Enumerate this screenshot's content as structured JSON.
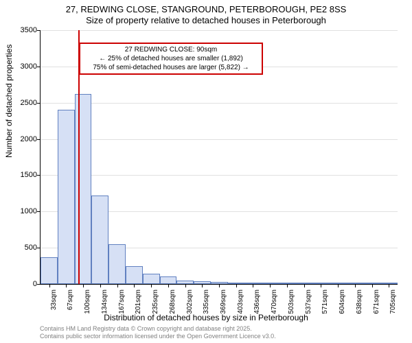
{
  "title_line1": "27, REDWING CLOSE, STANGROUND, PETERBOROUGH, PE2 8SS",
  "title_line2": "Size of property relative to detached houses in Peterborough",
  "y_axis_label": "Number of detached properties",
  "x_axis_label": "Distribution of detached houses by size in Peterborough",
  "footer_line1": "Contains HM Land Registry data © Crown copyright and database right 2025.",
  "footer_line2": "Contains public sector information licensed under the Open Government Licence v3.0.",
  "annotation": {
    "line1": "27 REDWING CLOSE: 90sqm",
    "line2": "← 25% of detached houses are smaller (1,892)",
    "line3": "75% of semi-detached houses are larger (5,822) →",
    "border_color": "#cc0000",
    "marker_x": 90
  },
  "chart": {
    "type": "histogram",
    "ylim": [
      0,
      3500
    ],
    "ytick_step": 500,
    "x_min": 16,
    "x_max": 722,
    "x_tick_start": 33,
    "x_tick_step": 33.6,
    "x_tick_count": 21,
    "x_unit": "sqm",
    "bar_fill": "#d6e0f5",
    "bar_border": "#6080c0",
    "marker_color": "#cc0000",
    "grid_color": "#e0e0e0",
    "bars": [
      {
        "x0": 16,
        "x1": 50,
        "value": 370
      },
      {
        "x0": 50,
        "x1": 84,
        "value": 2400
      },
      {
        "x0": 84,
        "x1": 117,
        "value": 2620
      },
      {
        "x0": 117,
        "x1": 151,
        "value": 1220
      },
      {
        "x0": 151,
        "x1": 184,
        "value": 550
      },
      {
        "x0": 184,
        "x1": 218,
        "value": 250
      },
      {
        "x0": 218,
        "x1": 252,
        "value": 140
      },
      {
        "x0": 252,
        "x1": 285,
        "value": 100
      },
      {
        "x0": 285,
        "x1": 319,
        "value": 45
      },
      {
        "x0": 319,
        "x1": 353,
        "value": 40
      },
      {
        "x0": 353,
        "x1": 386,
        "value": 25
      },
      {
        "x0": 386,
        "x1": 420,
        "value": 8
      },
      {
        "x0": 420,
        "x1": 453,
        "value": 5
      },
      {
        "x0": 453,
        "x1": 487,
        "value": 5
      },
      {
        "x0": 487,
        "x1": 521,
        "value": 3
      },
      {
        "x0": 521,
        "x1": 554,
        "value": 3
      },
      {
        "x0": 554,
        "x1": 588,
        "value": 2
      },
      {
        "x0": 588,
        "x1": 622,
        "value": 2
      },
      {
        "x0": 622,
        "x1": 655,
        "value": 1
      },
      {
        "x0": 655,
        "x1": 689,
        "value": 1
      },
      {
        "x0": 689,
        "x1": 722,
        "value": 1
      }
    ]
  }
}
